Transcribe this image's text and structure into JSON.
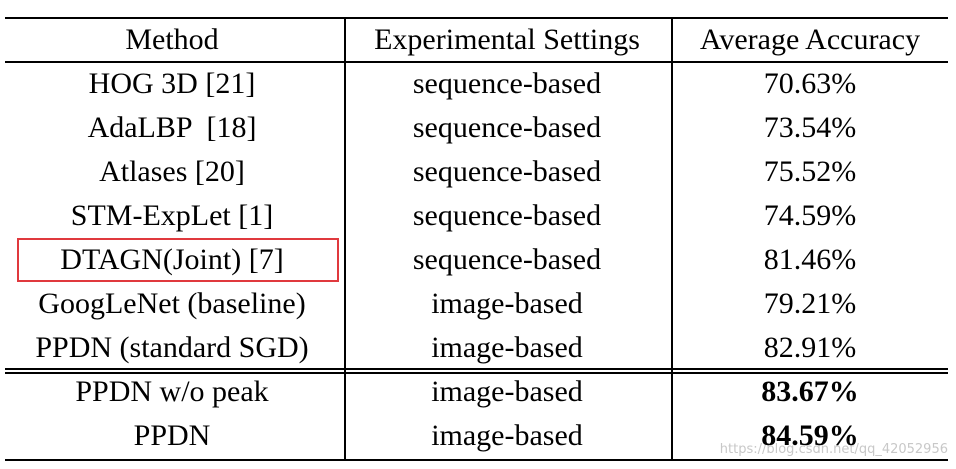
{
  "table": {
    "header": [
      "Method",
      "Experimental Settings",
      "Average Accuracy"
    ],
    "rows": [
      [
        "HOG 3D [21]",
        "sequence-based",
        "70.63%"
      ],
      [
        "AdaLBP  [18]",
        "sequence-based",
        "73.54%"
      ],
      [
        "Atlases [20]",
        "sequence-based",
        "75.52%"
      ],
      [
        "STM-ExpLet [1]",
        "sequence-based",
        "74.59%"
      ],
      [
        "DTAGN(Joint) [7]",
        "sequence-based",
        "81.46%"
      ],
      [
        "GoogLeNet (baseline)",
        "image-based",
        "79.21%"
      ],
      [
        "PPDN (standard SGD)",
        "image-based",
        "82.91%"
      ],
      [
        "PPDN w/o peak",
        "image-based",
        "83.67%"
      ],
      [
        "PPDN",
        "image-based",
        "84.59%"
      ]
    ]
  },
  "watermark": "https://blog.csdn.net/qq_42052956"
}
